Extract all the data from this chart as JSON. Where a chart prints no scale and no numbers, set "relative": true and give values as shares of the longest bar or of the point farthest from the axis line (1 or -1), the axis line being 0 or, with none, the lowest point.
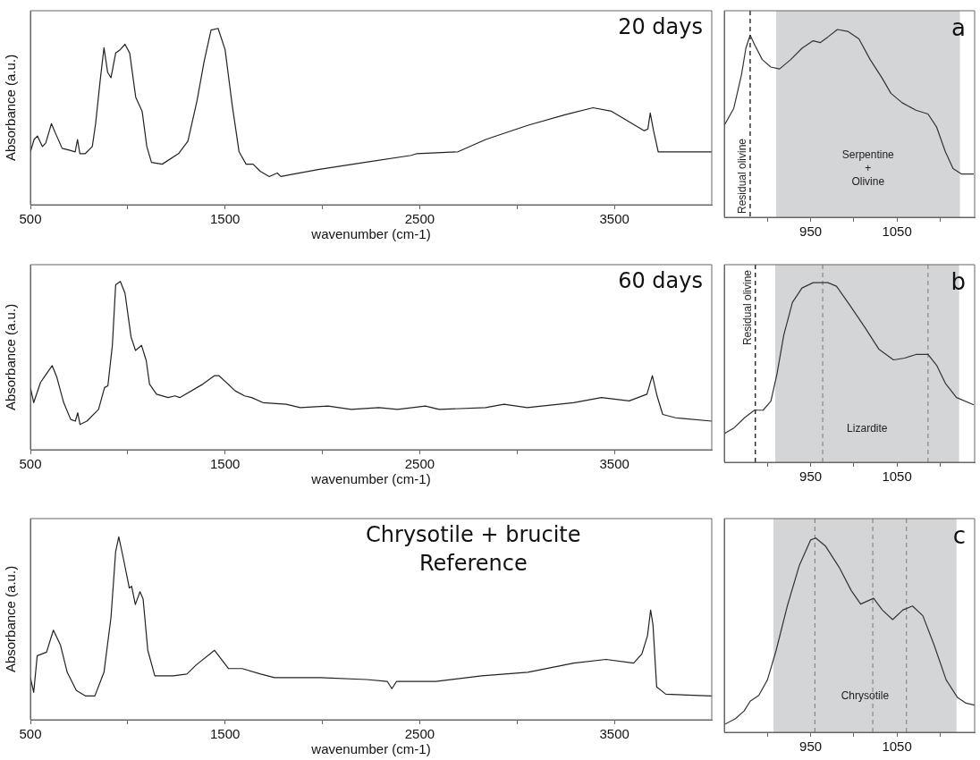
{
  "chart_data": [
    {
      "type": "line",
      "title": "20 days",
      "xlabel": "wavenumber (cm-1)",
      "ylabel": "Absorbance (a.u.)",
      "relative": true,
      "xlim": [
        500,
        4000
      ],
      "xticks": [
        500,
        {
          "value": 1000,
          "label": null
        },
        1500,
        {
          "value": 2000,
          "label": null
        },
        2500,
        {
          "value": 3000,
          "label": null
        },
        3500
      ],
      "x": [
        500,
        519,
        536,
        562,
        579,
        608,
        627,
        663,
        699,
        730,
        742,
        754,
        782,
        818,
        835,
        859,
        878,
        897,
        914,
        938,
        962,
        986,
        1010,
        1041,
        1074,
        1098,
        1122,
        1177,
        1261,
        1309,
        1356,
        1392,
        1428,
        1464,
        1500,
        1536,
        1572,
        1608,
        1644,
        1680,
        1727,
        1768,
        1787,
        1835,
        1978,
        2217,
        2457,
        2485,
        2696,
        2839,
        3054,
        3246,
        3390,
        3485,
        3653,
        3672,
        3684,
        3701,
        3725,
        3773,
        4000
      ],
      "series": [
        {
          "color": "#222222",
          "values": [
            0.3,
            0.37,
            0.39,
            0.33,
            0.35,
            0.46,
            0.41,
            0.32,
            0.31,
            0.3,
            0.37,
            0.29,
            0.29,
            0.33,
            0.46,
            0.71,
            0.89,
            0.75,
            0.72,
            0.86,
            0.88,
            0.91,
            0.86,
            0.61,
            0.53,
            0.33,
            0.24,
            0.23,
            0.29,
            0.36,
            0.59,
            0.81,
            0.99,
            1.0,
            0.88,
            0.57,
            0.3,
            0.23,
            0.23,
            0.19,
            0.16,
            0.18,
            0.16,
            0.17,
            0.2,
            0.24,
            0.28,
            0.29,
            0.3,
            0.37,
            0.45,
            0.51,
            0.55,
            0.53,
            0.42,
            0.43,
            0.52,
            0.42,
            0.3,
            0.3,
            0.3
          ]
        }
      ]
    },
    {
      "type": "line",
      "title": "a",
      "relative": true,
      "xlim": [
        850,
        1140
      ],
      "xticks": [
        {
          "value": 900,
          "label": null
        },
        950,
        {
          "value": 1000,
          "label": null
        },
        1050,
        {
          "value": 1100,
          "label": null
        }
      ],
      "bands": [
        {
          "axis": "x",
          "from": 910,
          "to": 1123,
          "label": "Serpentine\n+\nOlivine",
          "color": "#d4d5d7"
        }
      ],
      "ref_lines": [
        {
          "axis": "x",
          "value": 880,
          "label": "Residual olivine",
          "color": "#000000",
          "line_style": "dashed"
        }
      ],
      "x": [
        850,
        861,
        870,
        875,
        880,
        885,
        894,
        904,
        914,
        927,
        940,
        953,
        961,
        970,
        981,
        993,
        1006,
        1019,
        1033,
        1043,
        1056,
        1072,
        1086,
        1096,
        1106,
        1115,
        1125,
        1139
      ],
      "series": [
        {
          "color": "#333333",
          "values": [
            0.49,
            0.58,
            0.76,
            0.9,
            0.97,
            0.92,
            0.84,
            0.8,
            0.79,
            0.84,
            0.9,
            0.94,
            0.93,
            0.96,
            1.0,
            0.99,
            0.95,
            0.84,
            0.74,
            0.66,
            0.61,
            0.57,
            0.55,
            0.48,
            0.35,
            0.26,
            0.23,
            0.23
          ]
        }
      ]
    },
    {
      "type": "line",
      "title": "60 days",
      "xlabel": "wavenumber (cm-1)",
      "ylabel": "Absorbance (a.u.)",
      "relative": true,
      "xlim": [
        500,
        4000
      ],
      "xticks": [
        500,
        {
          "value": 1000,
          "label": null
        },
        1500,
        {
          "value": 2000,
          "label": null
        },
        2500,
        {
          "value": 3000,
          "label": null
        },
        3500
      ],
      "x": [
        500,
        517,
        552,
        576,
        612,
        636,
        671,
        707,
        731,
        743,
        755,
        790,
        850,
        881,
        898,
        921,
        938,
        962,
        986,
        1017,
        1040,
        1071,
        1095,
        1112,
        1148,
        1207,
        1243,
        1267,
        1386,
        1445,
        1469,
        1552,
        1600,
        1636,
        1695,
        1814,
        1886,
        2029,
        2148,
        2290,
        2386,
        2529,
        2600,
        2838,
        2933,
        3052,
        3290,
        3433,
        3576,
        3667,
        3695,
        3719,
        3748,
        3814,
        4000
      ],
      "series": [
        {
          "color": "#222222",
          "values": [
            0.37,
            0.28,
            0.4,
            0.44,
            0.5,
            0.43,
            0.28,
            0.18,
            0.17,
            0.22,
            0.15,
            0.17,
            0.24,
            0.37,
            0.38,
            0.62,
            0.98,
            1.0,
            0.93,
            0.67,
            0.59,
            0.62,
            0.53,
            0.39,
            0.33,
            0.31,
            0.32,
            0.31,
            0.39,
            0.44,
            0.44,
            0.35,
            0.32,
            0.31,
            0.28,
            0.27,
            0.25,
            0.26,
            0.24,
            0.25,
            0.24,
            0.26,
            0.24,
            0.25,
            0.27,
            0.25,
            0.28,
            0.31,
            0.29,
            0.33,
            0.44,
            0.32,
            0.21,
            0.19,
            0.17
          ]
        }
      ]
    },
    {
      "type": "line",
      "title": "b",
      "relative": true,
      "xlim": [
        850,
        1140
      ],
      "xticks": [
        {
          "value": 900,
          "label": null
        },
        950,
        {
          "value": 1000,
          "label": null
        },
        1050,
        {
          "value": 1100,
          "label": null
        }
      ],
      "bands": [
        {
          "axis": "x",
          "from": 909,
          "to": 1122,
          "label": "Lizardite",
          "color": "#d4d5d7"
        }
      ],
      "ref_lines": [
        {
          "axis": "x",
          "value": 886,
          "label": "Residual olivine",
          "color": "#000000",
          "line_style": "dashed"
        },
        {
          "axis": "x",
          "value": 964,
          "color": "#888888",
          "line_style": "dashed"
        },
        {
          "axis": "x",
          "value": 1086,
          "color": "#888888",
          "line_style": "dashed"
        }
      ],
      "x": [
        850,
        861,
        874,
        885,
        895,
        904,
        911,
        919,
        929,
        940,
        953,
        970,
        980,
        996,
        1013,
        1029,
        1046,
        1059,
        1072,
        1086,
        1096,
        1106,
        1119,
        1139
      ],
      "series": [
        {
          "color": "#333333",
          "values": [
            0.16,
            0.19,
            0.25,
            0.29,
            0.29,
            0.34,
            0.49,
            0.71,
            0.89,
            0.97,
            1.0,
            1.0,
            0.98,
            0.87,
            0.75,
            0.63,
            0.57,
            0.58,
            0.6,
            0.6,
            0.54,
            0.44,
            0.36,
            0.32
          ]
        }
      ]
    },
    {
      "type": "line",
      "title": "Chrysotile + brucite\nReference",
      "xlabel": "wavenumber (cm-1)",
      "ylabel": "Absorbance (a.u.)",
      "relative": true,
      "xlim": [
        500,
        4000
      ],
      "xticks": [
        500,
        {
          "value": 1000,
          "label": null
        },
        1500,
        {
          "value": 2000,
          "label": null
        },
        2500,
        {
          "value": 3000,
          "label": null
        },
        3500
      ],
      "x": [
        500,
        517,
        535,
        559,
        583,
        618,
        654,
        689,
        736,
        784,
        831,
        878,
        914,
        938,
        954,
        978,
        1008,
        1020,
        1039,
        1063,
        1079,
        1103,
        1139,
        1233,
        1304,
        1352,
        1446,
        1517,
        1588,
        1683,
        1754,
        1990,
        2227,
        2333,
        2357,
        2381,
        2582,
        2818,
        3055,
        3291,
        3457,
        3599,
        3641,
        3670,
        3686,
        3698,
        3717,
        3764,
        4000
      ],
      "series": [
        {
          "color": "#222222",
          "values": [
            0.23,
            0.15,
            0.35,
            0.36,
            0.37,
            0.49,
            0.41,
            0.26,
            0.16,
            0.13,
            0.13,
            0.26,
            0.56,
            0.92,
            1.0,
            0.88,
            0.72,
            0.73,
            0.63,
            0.7,
            0.66,
            0.38,
            0.24,
            0.24,
            0.25,
            0.3,
            0.38,
            0.28,
            0.28,
            0.25,
            0.23,
            0.23,
            0.22,
            0.21,
            0.17,
            0.21,
            0.21,
            0.24,
            0.26,
            0.31,
            0.33,
            0.31,
            0.36,
            0.46,
            0.6,
            0.52,
            0.18,
            0.14,
            0.13
          ]
        }
      ]
    },
    {
      "type": "line",
      "title": "c",
      "relative": true,
      "xlim": [
        850,
        1140
      ],
      "xticks": [
        {
          "value": 900,
          "label": null
        },
        950,
        {
          "value": 1000,
          "label": null
        },
        1050,
        {
          "value": 1100,
          "label": null
        }
      ],
      "bands": [
        {
          "axis": "x",
          "from": 907,
          "to": 1119,
          "label": "Chrysotile",
          "color": "#d4d5d7"
        }
      ],
      "ref_lines": [
        {
          "axis": "x",
          "value": 955,
          "color": "#888888",
          "line_style": "dashed"
        },
        {
          "axis": "x",
          "value": 1022,
          "color": "#888888",
          "line_style": "dashed"
        },
        {
          "axis": "x",
          "value": 1061,
          "color": "#888888",
          "line_style": "dashed"
        }
      ],
      "x": [
        850,
        863,
        873,
        880,
        890,
        900,
        910,
        923,
        937,
        950,
        956,
        967,
        983,
        997,
        1008,
        1023,
        1033,
        1045,
        1057,
        1068,
        1080,
        1093,
        1107,
        1120,
        1130,
        1140
      ],
      "series": [
        {
          "color": "#333333",
          "values": [
            0.04,
            0.07,
            0.11,
            0.16,
            0.19,
            0.27,
            0.42,
            0.65,
            0.86,
            0.99,
            1.0,
            0.96,
            0.85,
            0.73,
            0.66,
            0.69,
            0.63,
            0.58,
            0.63,
            0.65,
            0.6,
            0.45,
            0.27,
            0.18,
            0.15,
            0.14
          ]
        }
      ]
    }
  ]
}
